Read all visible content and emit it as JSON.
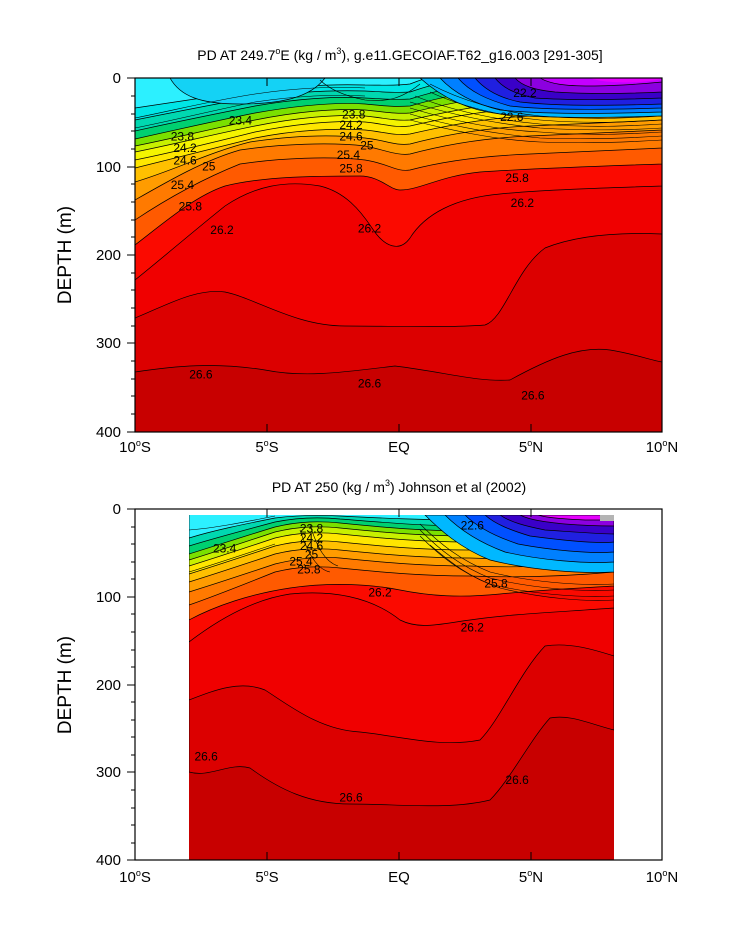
{
  "chart_data": [
    {
      "type": "heatmap",
      "subtype": "filled-contour",
      "title": "PD AT 249.7",
      "title_sup_o": "o",
      "title_mid": "E (kg / m",
      "title_sup_3": "3",
      "title_tail": "), g.e11.GECOIAF.T62_g16.003 [291-305]",
      "ylabel": "DEPTH (m)",
      "x_ticks": [
        "10",
        "5",
        "EQ",
        "5",
        "10"
      ],
      "x_tick_sup": [
        "o",
        "o",
        "",
        "o",
        "o"
      ],
      "x_tick_suffix": [
        "S",
        "S",
        "",
        "N",
        "N"
      ],
      "y_ticks": [
        "0",
        "100",
        "200",
        "300",
        "400"
      ],
      "xlim": [
        -10,
        10
      ],
      "ylim": [
        0,
        400
      ],
      "y_inverted": true,
      "data_xlim": [
        -10,
        10
      ],
      "contour_labels": [
        {
          "text": "23.4",
          "x": -6.0,
          "y": 48
        },
        {
          "text": "23.8",
          "x": -8.2,
          "y": 66
        },
        {
          "text": "24.2",
          "x": -8.1,
          "y": 79
        },
        {
          "text": "24.6",
          "x": -8.1,
          "y": 93
        },
        {
          "text": "25",
          "x": -7.2,
          "y": 100
        },
        {
          "text": "25.4",
          "x": -8.2,
          "y": 121
        },
        {
          "text": "25.8",
          "x": -7.9,
          "y": 145
        },
        {
          "text": "26.2",
          "x": -6.7,
          "y": 172
        },
        {
          "text": "23.8",
          "x": -1.7,
          "y": 41
        },
        {
          "text": "24.2",
          "x": -1.8,
          "y": 53
        },
        {
          "text": "24.6",
          "x": -1.8,
          "y": 66
        },
        {
          "text": "25",
          "x": -1.2,
          "y": 76
        },
        {
          "text": "25.4",
          "x": -1.9,
          "y": 87
        },
        {
          "text": "25.8",
          "x": -1.8,
          "y": 102
        },
        {
          "text": "26.2",
          "x": -1.1,
          "y": 170
        },
        {
          "text": "22.2",
          "x": 4.8,
          "y": 17
        },
        {
          "text": "22.6",
          "x": 4.3,
          "y": 44
        },
        {
          "text": "25.8",
          "x": 4.5,
          "y": 113
        },
        {
          "text": "26.2",
          "x": 4.7,
          "y": 141
        },
        {
          "text": "26.6",
          "x": -7.5,
          "y": 335
        },
        {
          "text": "26.6",
          "x": -1.1,
          "y": 345
        },
        {
          "text": "26.6",
          "x": 5.1,
          "y": 359
        }
      ]
    },
    {
      "type": "heatmap",
      "subtype": "filled-contour",
      "title": "PD AT 250 (kg / m",
      "title_sup_3": "3",
      "title_tail": ") Johnson et al (2002)",
      "ylabel": "DEPTH (m)",
      "x_ticks": [
        "10",
        "5",
        "EQ",
        "5",
        "10"
      ],
      "x_tick_sup": [
        "o",
        "o",
        "",
        "o",
        "o"
      ],
      "x_tick_suffix": [
        "S",
        "S",
        "",
        "N",
        "N"
      ],
      "y_ticks": [
        "0",
        "100",
        "200",
        "300",
        "400"
      ],
      "xlim": [
        -10,
        10
      ],
      "ylim": [
        0,
        400
      ],
      "y_inverted": true,
      "data_xlim": [
        -8,
        8.2
      ],
      "contour_labels": [
        {
          "text": "23.4",
          "x": -6.6,
          "y": 45
        },
        {
          "text": "23.8",
          "x": -3.3,
          "y": 22
        },
        {
          "text": "24.2",
          "x": -3.3,
          "y": 33
        },
        {
          "text": "24.6",
          "x": -3.3,
          "y": 42
        },
        {
          "text": "25",
          "x": -3.3,
          "y": 52
        },
        {
          "text": "25.4",
          "x": -3.7,
          "y": 60
        },
        {
          "text": "25.8",
          "x": -3.4,
          "y": 69
        },
        {
          "text": "26.2",
          "x": -0.7,
          "y": 95
        },
        {
          "text": "22.6",
          "x": 2.8,
          "y": 19
        },
        {
          "text": "25.8",
          "x": 3.7,
          "y": 85
        },
        {
          "text": "26.2",
          "x": 2.8,
          "y": 135
        },
        {
          "text": "26.6",
          "x": -7.3,
          "y": 282
        },
        {
          "text": "26.6",
          "x": -1.8,
          "y": 329
        },
        {
          "text": "26.6",
          "x": 4.5,
          "y": 309
        }
      ]
    }
  ]
}
